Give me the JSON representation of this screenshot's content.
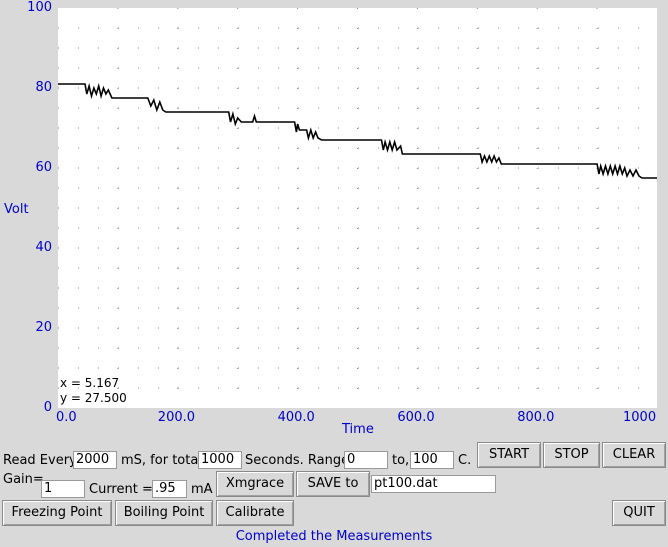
{
  "chart_data": {
    "type": "line",
    "xlabel": "Time",
    "ylabel": "Volt",
    "xlim": [
      0,
      1000
    ],
    "ylim": [
      0,
      100
    ],
    "x_ticks": [
      "0.0",
      "200.0",
      "400.0",
      "600.0",
      "800.0",
      "1000"
    ],
    "y_ticks": [
      "0",
      "20",
      "40",
      "60",
      "80",
      "100"
    ],
    "grid": "dotted",
    "series": [
      {
        "color": "#000000",
        "points": [
          [
            0,
            81
          ],
          [
            45,
            81
          ],
          [
            48,
            78.5
          ],
          [
            52,
            80.5
          ],
          [
            56,
            78
          ],
          [
            60,
            80
          ],
          [
            64,
            78.5
          ],
          [
            68,
            80.5
          ],
          [
            72,
            78
          ],
          [
            76,
            80
          ],
          [
            80,
            78.5
          ],
          [
            84,
            79.5
          ],
          [
            90,
            77.5
          ],
          [
            150,
            77.5
          ],
          [
            155,
            75.5
          ],
          [
            160,
            77
          ],
          [
            165,
            74.5
          ],
          [
            170,
            76.5
          ],
          [
            175,
            74.5
          ],
          [
            180,
            74
          ],
          [
            285,
            74
          ],
          [
            288,
            71.5
          ],
          [
            292,
            73.5
          ],
          [
            296,
            71
          ],
          [
            300,
            72.5
          ],
          [
            306,
            71.5
          ],
          [
            325,
            71.5
          ],
          [
            328,
            73
          ],
          [
            331,
            71.5
          ],
          [
            395,
            71.5
          ],
          [
            398,
            69
          ],
          [
            400,
            71
          ],
          [
            403,
            69.5
          ],
          [
            415,
            69.5
          ],
          [
            418,
            67.5
          ],
          [
            422,
            69.5
          ],
          [
            426,
            67.5
          ],
          [
            430,
            69
          ],
          [
            434,
            67.5
          ],
          [
            440,
            67
          ],
          [
            540,
            67
          ],
          [
            543,
            64.5
          ],
          [
            546,
            66.5
          ],
          [
            550,
            64.5
          ],
          [
            554,
            66.5
          ],
          [
            558,
            64.5
          ],
          [
            562,
            66.5
          ],
          [
            566,
            64.5
          ],
          [
            572,
            65.5
          ],
          [
            575,
            63.5
          ],
          [
            705,
            63.5
          ],
          [
            708,
            61.5
          ],
          [
            712,
            63
          ],
          [
            716,
            61.5
          ],
          [
            720,
            63
          ],
          [
            724,
            61.5
          ],
          [
            728,
            63
          ],
          [
            732,
            61.5
          ],
          [
            736,
            62.5
          ],
          [
            740,
            61
          ],
          [
            900,
            61
          ],
          [
            903,
            58.5
          ],
          [
            906,
            60.5
          ],
          [
            910,
            58.5
          ],
          [
            914,
            60.5
          ],
          [
            918,
            58.5
          ],
          [
            922,
            60.5
          ],
          [
            926,
            58.5
          ],
          [
            930,
            60.5
          ],
          [
            934,
            58.5
          ],
          [
            938,
            60.5
          ],
          [
            942,
            58.5
          ],
          [
            946,
            60
          ],
          [
            950,
            58
          ],
          [
            955,
            59.5
          ],
          [
            960,
            58
          ],
          [
            965,
            59.5
          ],
          [
            970,
            58
          ],
          [
            975,
            57.5
          ],
          [
            1000,
            57.5
          ]
        ]
      }
    ],
    "cursor": {
      "x_label": "x = 5.167",
      "y_label": "y = 27.500"
    }
  },
  "controls": {
    "read_every_label": "Read Every",
    "interval_value": "2000",
    "ms_total_label": "mS, for total",
    "total_value": "1000",
    "seconds_range_label": "Seconds. Range",
    "range_from_value": "0",
    "to_label": "to,",
    "range_to_value": "100",
    "c_label": "C.",
    "gain_label": "Gain=",
    "gain_value": "1",
    "current_label": "Current =",
    "current_value": ".95",
    "ma_label": "mA",
    "filename_value": "pt100.dat"
  },
  "buttons": {
    "start": "START",
    "stop": "STOP",
    "clear": "CLEAR",
    "xmgrace": "Xmgrace",
    "save_to": "SAVE to",
    "freezing_point": "Freezing Point",
    "boiling_point": "Boiling Point",
    "calibrate": "Calibrate",
    "quit": "QUIT"
  },
  "status": "Completed the Measurements"
}
